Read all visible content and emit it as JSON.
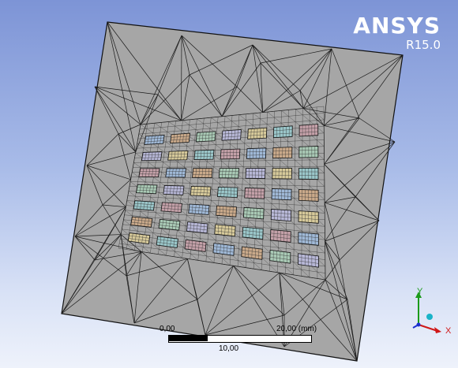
{
  "branding": {
    "product": "ANSYS",
    "version": "R15.0"
  },
  "scale": {
    "start_label": "0,00",
    "end_label": "20,00 (mm)",
    "mid_label": "10,00"
  },
  "triad": {
    "y_label": "Y",
    "x_label": "X",
    "y_color": "#1a9a1a",
    "x_color": "#d01818",
    "z_color": "#1a2fd0",
    "origin_color": "#1ab3c8"
  },
  "colors": {
    "plate_fill": "#a6a6a6",
    "plate_edge": "#111111",
    "mesh_line": "#1a1a1a",
    "scale_dark": "#000000",
    "scale_light": "#ffffff"
  },
  "components": {
    "rows": 7,
    "cols": 7,
    "tints": [
      "#9fb8d6",
      "#c9a98a",
      "#a9c9b5",
      "#b7b7d6",
      "#d6c99a",
      "#9ac6c9",
      "#c3a0a8"
    ]
  }
}
